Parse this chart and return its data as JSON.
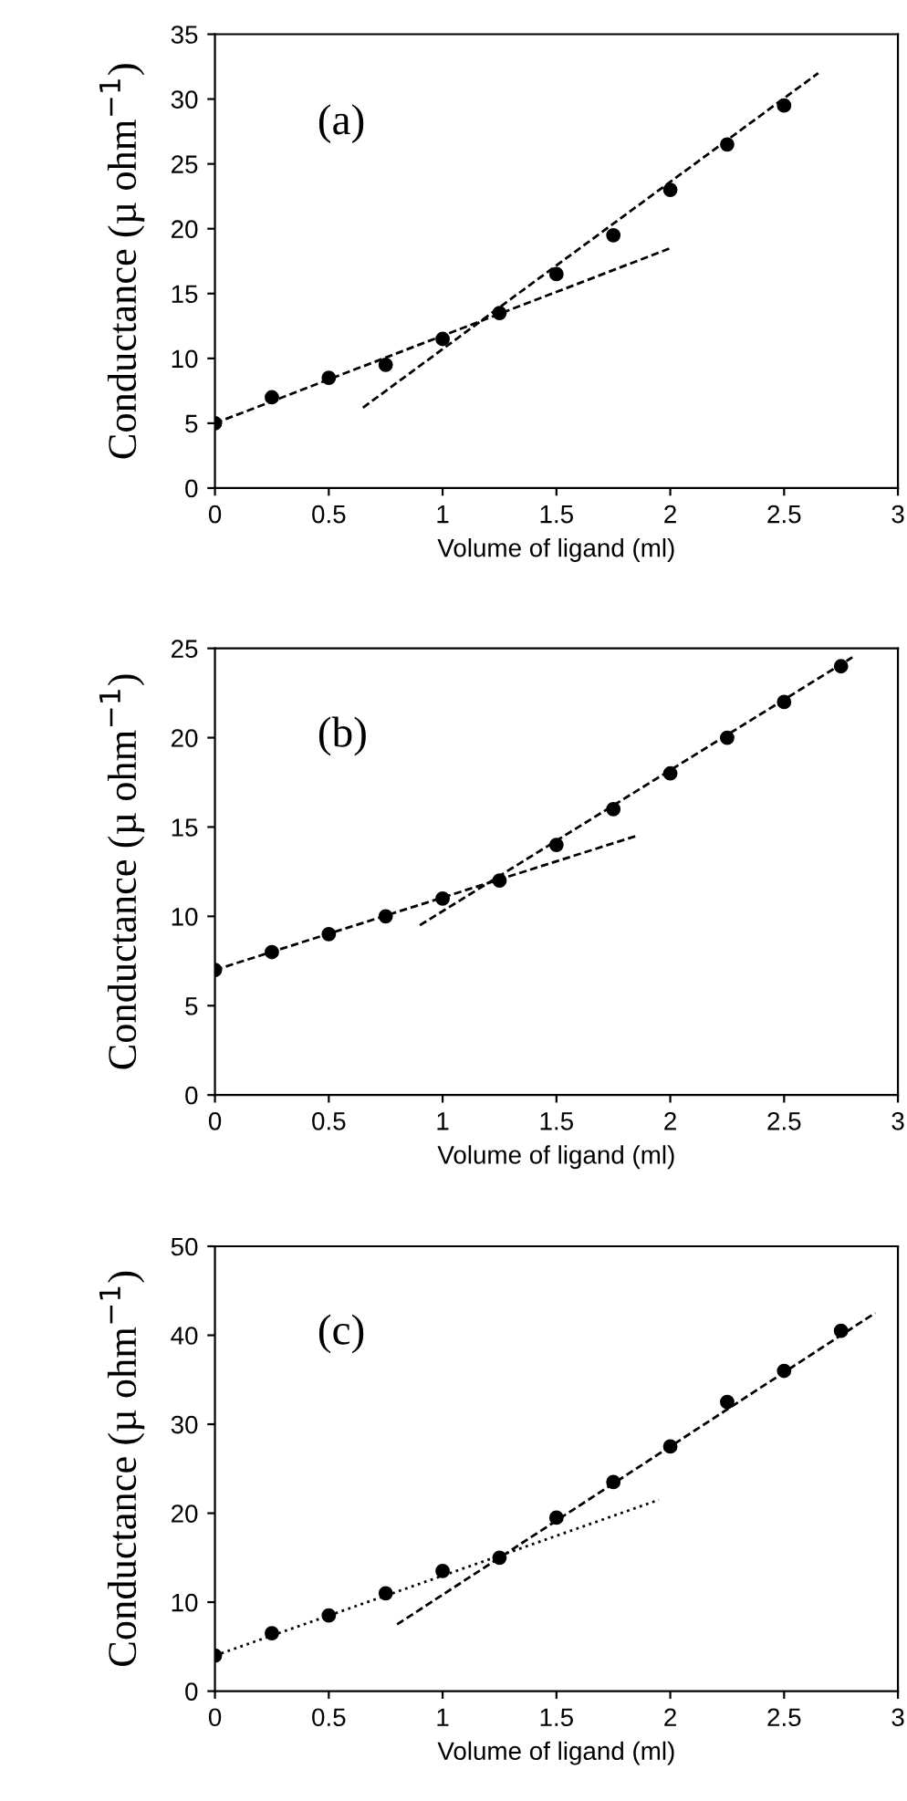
{
  "chart_data": [
    {
      "type": "scatter",
      "xlabel": "Volume of ligand (ml)",
      "ylabel": "Conductance (µ ohm$^{−1}$)",
      "annotations": [
        "(a)"
      ],
      "grid": false,
      "xlim": [
        0,
        3
      ],
      "xticks": [
        0,
        0.5,
        1,
        1.5,
        2,
        2.5,
        3
      ],
      "ylim": [
        0,
        35
      ],
      "yticks": [
        0,
        5,
        10,
        15,
        20,
        25,
        30,
        35
      ],
      "series": [
        {
          "marker": "circle",
          "color": "#000000",
          "x": [
            0,
            0.25,
            0.5,
            0.75,
            1,
            1.25,
            1.5,
            1.75,
            2,
            2.25,
            2.5
          ],
          "values": [
            5,
            7,
            8.5,
            9.5,
            11.5,
            13.5,
            16.5,
            19.5,
            23,
            26.5,
            29.5
          ]
        },
        {
          "type": "line",
          "color": "#000000",
          "line_style": "dashed",
          "x": [
            0,
            2
          ],
          "values": [
            5,
            18.5
          ]
        },
        {
          "type": "line",
          "color": "#000000",
          "line_style": "dashed",
          "x": [
            0.65,
            2.65
          ],
          "values": [
            6.2,
            32
          ]
        }
      ]
    },
    {
      "type": "scatter",
      "xlabel": "Volume of ligand (ml)",
      "ylabel": "Conductance (µ ohm$^{−1}$)",
      "annotations": [
        "(b)"
      ],
      "grid": false,
      "xlim": [
        0,
        3
      ],
      "xticks": [
        0,
        0.5,
        1,
        1.5,
        2,
        2.5,
        3
      ],
      "ylim": [
        0,
        25
      ],
      "yticks": [
        0,
        5,
        10,
        15,
        20,
        25
      ],
      "series": [
        {
          "marker": "circle",
          "color": "#000000",
          "x": [
            0,
            0.25,
            0.5,
            0.75,
            1,
            1.25,
            1.5,
            1.75,
            2,
            2.25,
            2.5,
            2.75
          ],
          "values": [
            7,
            8,
            9,
            10,
            11,
            12,
            14,
            16,
            18,
            20,
            22,
            24
          ]
        },
        {
          "type": "line",
          "color": "#000000",
          "line_style": "dashed",
          "x": [
            0,
            1.85
          ],
          "values": [
            7,
            14.5
          ]
        },
        {
          "type": "line",
          "color": "#000000",
          "line_style": "dashed",
          "x": [
            0.9,
            2.8
          ],
          "values": [
            9.5,
            24.5
          ]
        }
      ]
    },
    {
      "type": "scatter",
      "xlabel": "Volume of ligand (ml)",
      "ylabel": "Conductance (µ ohm$^{−1}$)",
      "annotations": [
        "(c)"
      ],
      "grid": false,
      "xlim": [
        0,
        3
      ],
      "xticks": [
        0,
        0.5,
        1,
        1.5,
        2,
        2.5,
        3
      ],
      "ylim": [
        0,
        50
      ],
      "yticks": [
        0,
        10,
        20,
        30,
        40,
        50
      ],
      "series": [
        {
          "marker": "circle",
          "color": "#000000",
          "x": [
            0,
            0.25,
            0.5,
            0.75,
            1,
            1.25,
            1.5,
            1.75,
            2,
            2.25,
            2.5,
            2.75
          ],
          "values": [
            4,
            6.5,
            8.5,
            11,
            13.5,
            15,
            19.5,
            23.5,
            27.5,
            32.5,
            36,
            40.5
          ]
        },
        {
          "type": "line",
          "color": "#000000",
          "line_style": "dotted",
          "x": [
            0,
            1.95
          ],
          "values": [
            4,
            21.5
          ]
        },
        {
          "type": "line",
          "color": "#000000",
          "line_style": "dashed",
          "x": [
            0.8,
            2.9
          ],
          "values": [
            7.5,
            42.5
          ]
        }
      ]
    }
  ]
}
